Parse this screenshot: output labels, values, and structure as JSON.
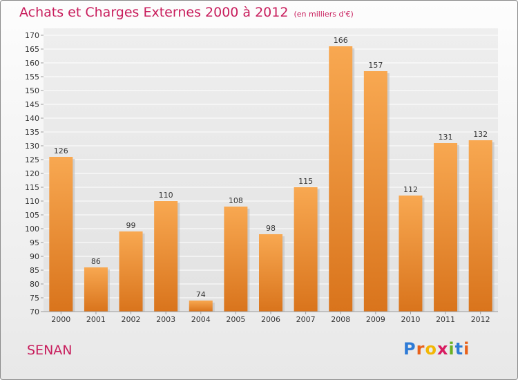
{
  "title": "Achats et Charges Externes 2000 à 2012",
  "subtitle": "(en milliers d'€)",
  "commune": "SENAN",
  "logo": {
    "letters": [
      "P",
      "r",
      "o",
      "x",
      "i",
      "t",
      "i"
    ],
    "colors": [
      "#2e7bd6",
      "#e8611a",
      "#f2b705",
      "#d81b60",
      "#6ab023",
      "#2e7bd6",
      "#e8611a"
    ]
  },
  "colors": {
    "bar": "#f39a3c",
    "title": "#c81d5c"
  },
  "chart_data": {
    "type": "bar",
    "categories": [
      "2000",
      "2001",
      "2002",
      "2003",
      "2004",
      "2005",
      "2006",
      "2007",
      "2008",
      "2009",
      "2010",
      "2011",
      "2012"
    ],
    "values": [
      126,
      86,
      99,
      110,
      74,
      108,
      98,
      115,
      166,
      157,
      112,
      131,
      132
    ],
    "ylim": [
      70,
      170
    ],
    "yticks": [
      70,
      75,
      80,
      85,
      90,
      95,
      100,
      105,
      110,
      115,
      120,
      125,
      130,
      135,
      140,
      145,
      150,
      155,
      160,
      165,
      170
    ],
    "grid": true
  }
}
